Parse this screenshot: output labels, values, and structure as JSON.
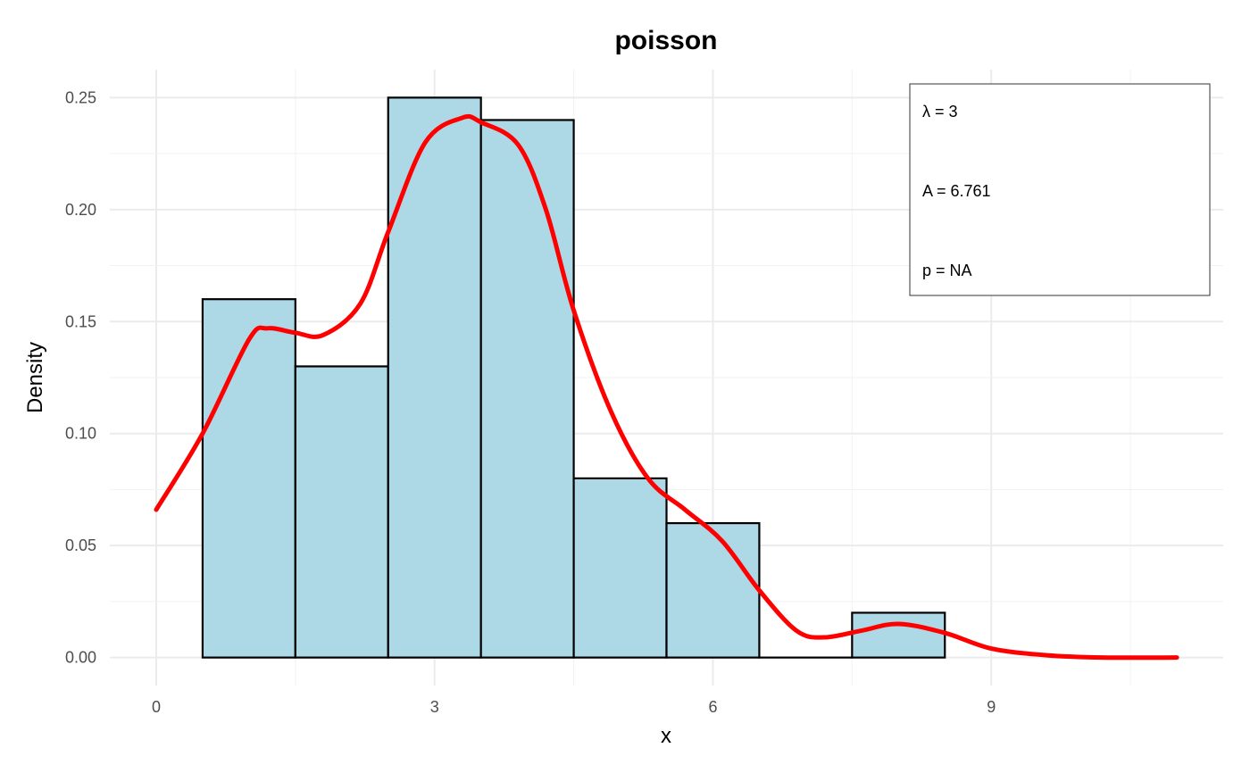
{
  "chart_data": {
    "type": "bar",
    "title": "poisson",
    "xlabel": "x",
    "ylabel": "Density",
    "xlim": [
      -0.5,
      11.5
    ],
    "ylim": [
      -0.0125,
      0.2625
    ],
    "x_ticks": [
      0,
      3,
      6,
      9
    ],
    "x_tick_labels": [
      "0",
      "3",
      "6",
      "9"
    ],
    "y_ticks": [
      0.0,
      0.05,
      0.1,
      0.15,
      0.2,
      0.25
    ],
    "y_tick_labels": [
      "0.00",
      "0.05",
      "0.10",
      "0.15",
      "0.20",
      "0.25"
    ],
    "grid": true,
    "bins": [
      {
        "x0": 0.5,
        "x1": 1.5,
        "density": 0.16
      },
      {
        "x0": 1.5,
        "x1": 2.5,
        "density": 0.13
      },
      {
        "x0": 2.5,
        "x1": 3.5,
        "density": 0.25
      },
      {
        "x0": 3.5,
        "x1": 4.5,
        "density": 0.24
      },
      {
        "x0": 4.5,
        "x1": 5.5,
        "density": 0.08
      },
      {
        "x0": 5.5,
        "x1": 6.5,
        "density": 0.06
      },
      {
        "x0": 6.5,
        "x1": 7.5,
        "density": 0.0
      },
      {
        "x0": 7.5,
        "x1": 8.5,
        "density": 0.02
      }
    ],
    "bar_fill": "#add8e6",
    "bar_stroke": "#000000",
    "density_curve": {
      "color": "#ff0000",
      "points": [
        [
          0.0,
          0.066
        ],
        [
          0.5,
          0.1
        ],
        [
          1.0,
          0.142
        ],
        [
          1.2,
          0.147
        ],
        [
          1.5,
          0.145
        ],
        [
          1.8,
          0.144
        ],
        [
          2.2,
          0.158
        ],
        [
          2.5,
          0.19
        ],
        [
          2.9,
          0.23
        ],
        [
          3.3,
          0.241
        ],
        [
          3.5,
          0.239
        ],
        [
          3.9,
          0.229
        ],
        [
          4.2,
          0.2
        ],
        [
          4.5,
          0.155
        ],
        [
          4.9,
          0.11
        ],
        [
          5.3,
          0.08
        ],
        [
          5.7,
          0.066
        ],
        [
          6.1,
          0.052
        ],
        [
          6.5,
          0.03
        ],
        [
          6.9,
          0.012
        ],
        [
          7.2,
          0.009
        ],
        [
          7.6,
          0.012
        ],
        [
          8.0,
          0.015
        ],
        [
          8.5,
          0.011
        ],
        [
          9.0,
          0.004
        ],
        [
          9.6,
          0.001
        ],
        [
          10.2,
          0.0
        ],
        [
          11.0,
          0.0
        ]
      ]
    },
    "annotations": [
      "λ = 3",
      "A = 6.761",
      "p = NA"
    ],
    "annotation_placement": "top-right"
  }
}
